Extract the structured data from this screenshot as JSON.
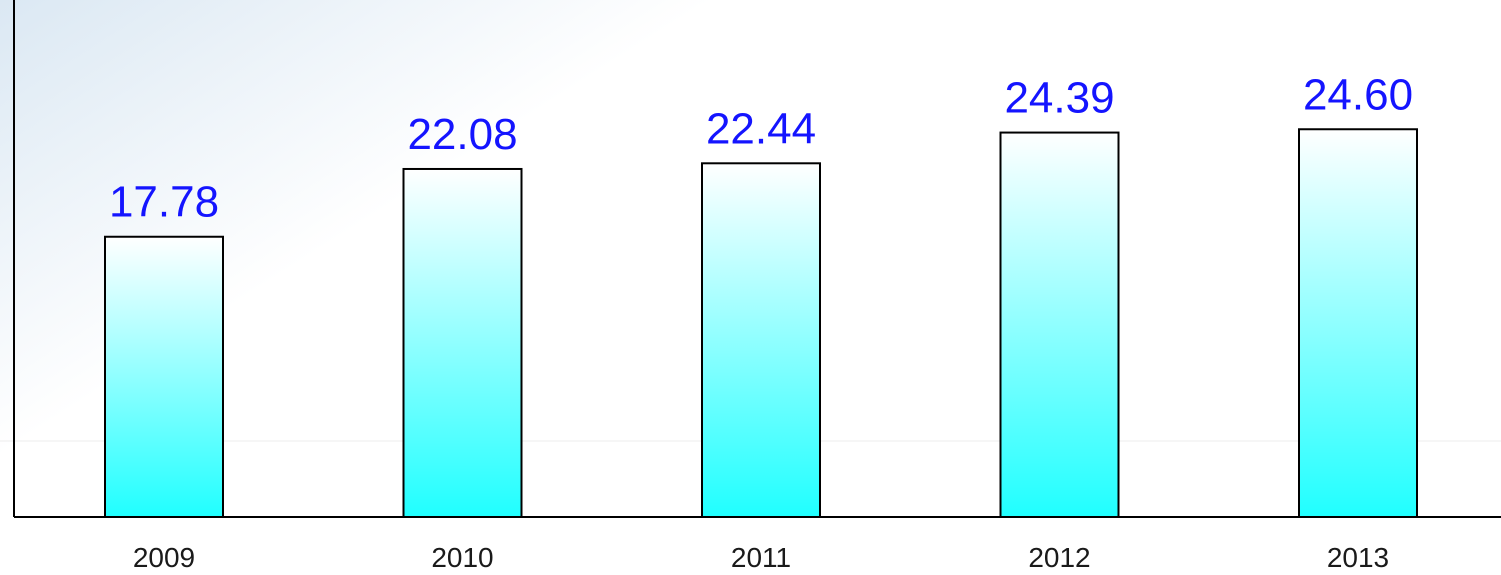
{
  "chart_data": {
    "type": "bar",
    "categories": [
      "2009",
      "2010",
      "2011",
      "2012",
      "2013"
    ],
    "values": [
      17.78,
      22.08,
      22.44,
      24.39,
      24.6
    ],
    "value_labels": [
      "17.78",
      "22.08",
      "22.44",
      "24.39",
      "24.60"
    ],
    "title": "",
    "xlabel": "",
    "ylabel": "",
    "ylim": [
      0,
      32.8
    ],
    "grid": false,
    "legend": "none",
    "colors": {
      "value_label": "#1414ff",
      "bar_fill_top": "#ffffff",
      "bar_fill_bottom": "#20ffff",
      "bar_stroke": "#000000",
      "axis": "#000000",
      "tick_label": "#1a1a1a"
    }
  }
}
